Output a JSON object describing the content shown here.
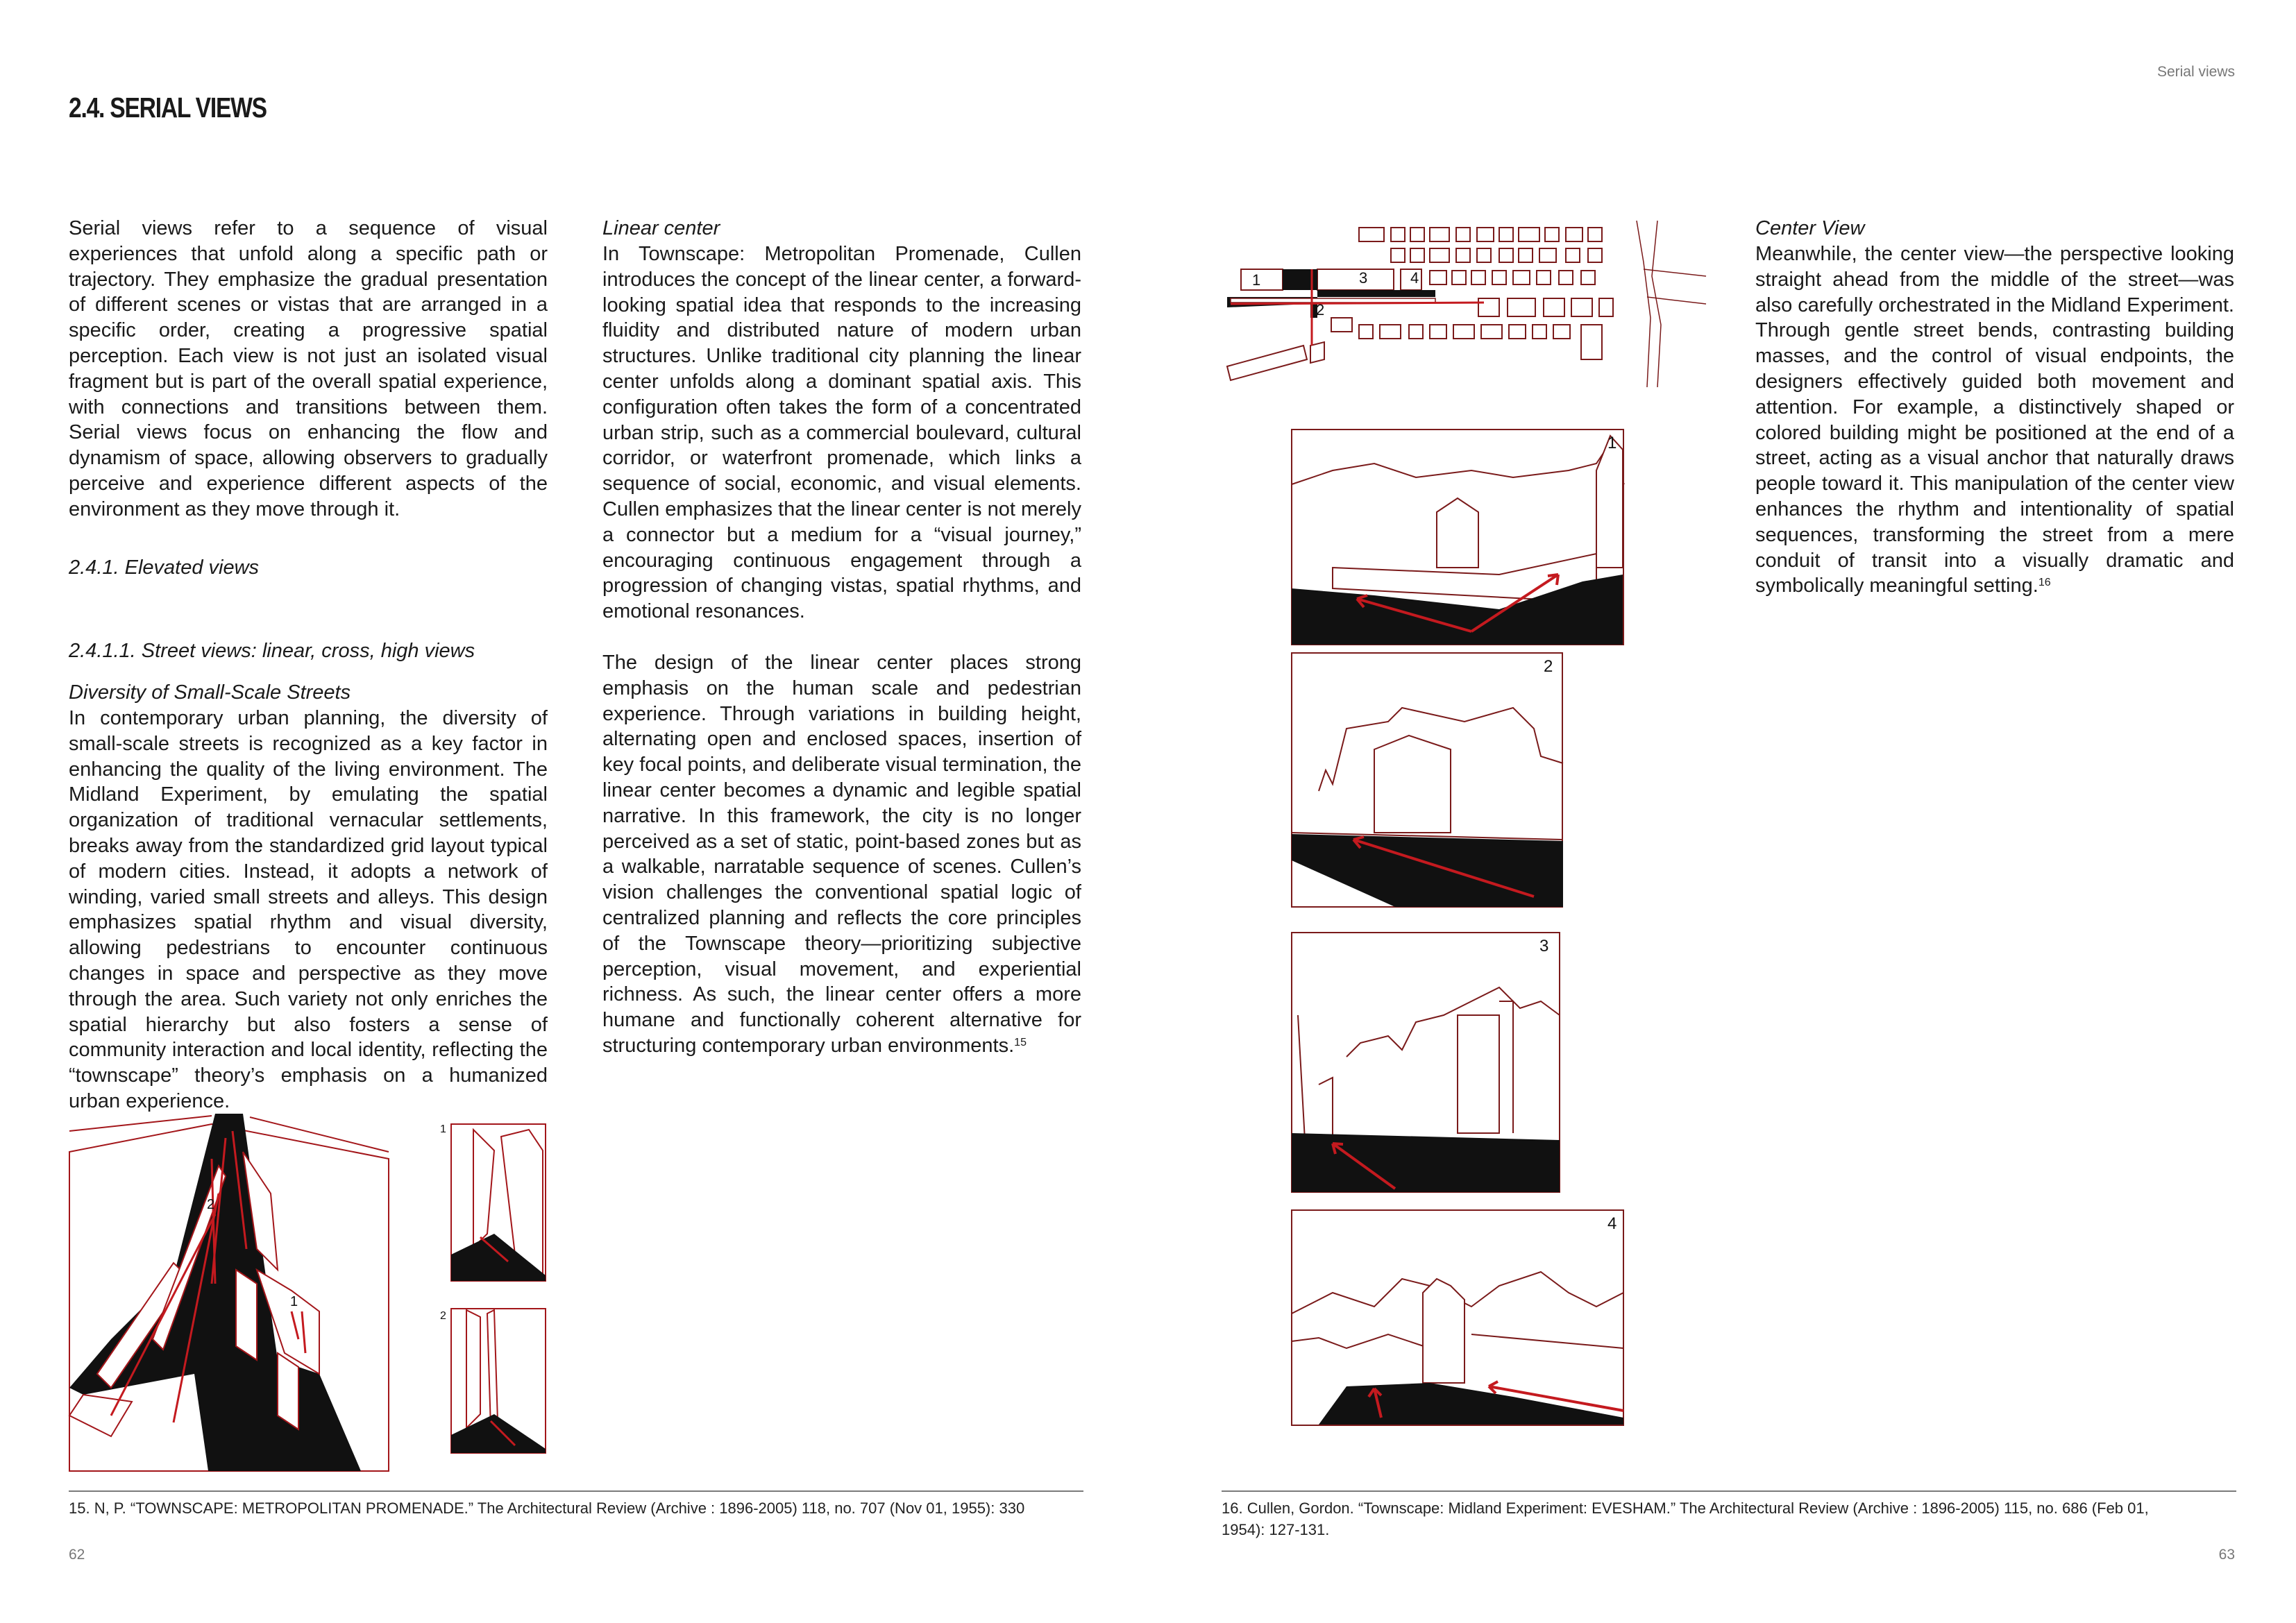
{
  "header": {
    "section_title": "2.4. SERIAL VIEWS",
    "running_head": "Serial views"
  },
  "left_column": {
    "intro": "Serial views refer to a sequence of visual experiences that unfold along a specific path or trajectory. They emphasize the gradual presentation of different scenes or vistas that are arranged in a specific order, creating a progressive spatial perception. Each view is not just an isolated visual fragment but is part of the overall spatial experience, with connections and transitions between them. Serial views focus on enhancing the flow and dynamism of space, allowing observers to gradually perceive and experience different aspects of the environment as they move through it.",
    "subheading_1": "2.4.1. Elevated views",
    "subheading_2": "2.4.1.1.  Street views: linear, cross, high views",
    "subheading_3": "Diversity of Small-Scale Streets",
    "paragraph": "In contemporary urban planning, the diversity of small-scale streets is recognized as a key factor in enhancing the quality of the living environment. The Midland Experiment, by emulating the spatial organization of traditional vernacular settlements, breaks away from the standardized grid layout typical of modern cities. Instead, it adopts a network of winding, varied small streets and alleys. This design emphasizes spatial rhythm and visual diversity, allowing pedestrians to encounter continuous changes in space and perspective as they move through the area. Such variety not only enriches the spatial hierarchy but also fosters a sense of community interaction and local identity, reflecting the “townscape” theory’s emphasis on a humanized urban experience."
  },
  "middle_column": {
    "heading": "Linear center",
    "paragraph_1": "In Townscape: Metropolitan Promenade, Cullen introduces the concept of the linear center, a forward-looking spatial idea that responds to the increasing fluidity and distributed nature of modern urban structures. Unlike traditional city planning the linear center unfolds along a dominant spatial axis. This configuration often takes the form of a concentrated urban strip, such as a commercial boulevard, cultural corridor, or waterfront promenade, which links a sequence of social, economic, and visual elements. Cullen emphasizes that the linear center is not merely a connector but a medium for a “visual journey,” encouraging continuous engagement through a progression of changing vistas, spatial rhythms, and emotional resonances.",
    "paragraph_2": "The design of the linear center places strong emphasis on the human scale and pedestrian experience. Through variations in building height, alternating open and enclosed spaces, insertion of key focal points, and deliberate visual termination, the linear center becomes a dynamic and legible spatial narrative. In this framework, the city is no longer perceived as a set of static, point-based zones but as a walkable, narratable sequence of scenes. Cullen’s vision challenges the conventional spatial logic of centralized planning and reflects the core principles of the Townscape theory—prioritizing subjective perception, visual movement, and experiential richness. As such, the linear center offers a more humane and functionally coherent alternative for structuring contemporary urban environments.",
    "footnote_ref": "15"
  },
  "right_column": {
    "heading": "Center View",
    "paragraph": "Meanwhile, the center view—the perspective looking straight ahead from the middle of the street—was also carefully orchestrated in the Midland Experiment. Through gentle street bends, contrasting building masses, and the control of visual endpoints, the designers effectively guided both movement and attention. For example, a distinctively shaped or colored building might be positioned at the end of a street, acting as a visual anchor that naturally draws people toward it. This manipulation of the center view enhances the rhythm and intentionality of spatial sequences, transforming the street from a mere conduit of transit into a visually dramatic and symbolically meaningful setting.",
    "footnote_ref": "16"
  },
  "figures": {
    "aerial_labels": [
      "2",
      "1"
    ],
    "small_view_labels": [
      "1",
      "2"
    ],
    "plan_labels": [
      "1",
      "3",
      "4",
      "2"
    ],
    "sequence_labels": [
      "1",
      "2",
      "3",
      "4"
    ]
  },
  "footnotes": {
    "fn15": "15. N, P. “TOWNSCAPE: METROPOLITAN PROMENADE.” The Architectural Review (Archive : 1896-2005) 118, no. 707 (Nov 01, 1955): 330",
    "fn16_line1": "16. Cullen, Gordon. “Townscape: Midland Experiment: EVESHAM.” The Architectural Review (Archive : 1896-2005) 115, no. 686 (Feb 01,",
    "fn16_line2": "1954): 127-131."
  },
  "page_numbers": {
    "left": "62",
    "right": "63"
  },
  "colors": {
    "accent": "#a3161a",
    "rule": "#7a7a7a",
    "text": "#1a1a1a"
  }
}
